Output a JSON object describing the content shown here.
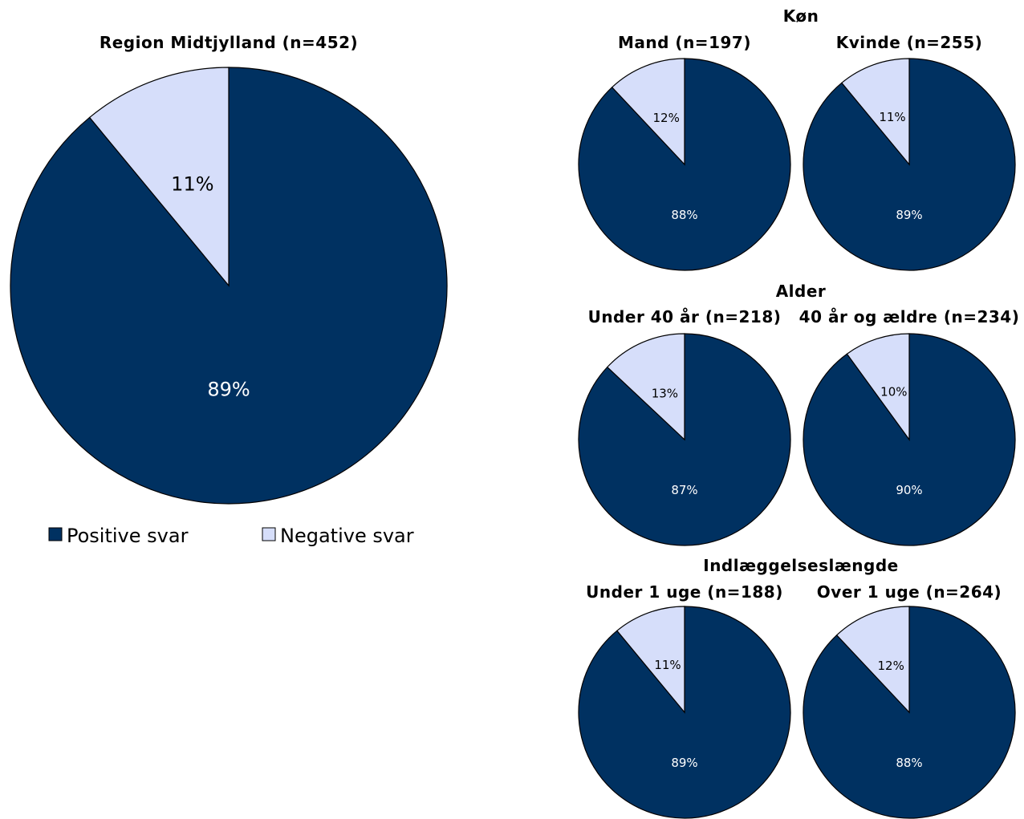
{
  "colors": {
    "positive": "#003161",
    "negative": "#d6defa",
    "positive_label_text": "#ffffff",
    "negative_label_text": "#000000",
    "stroke": "#000000"
  },
  "legend": {
    "positive_label": "Positive svar",
    "negative_label": "Negative svar"
  },
  "group_titles": {
    "gender": "Køn",
    "age": "Alder",
    "stay": "Indlæggelseslængde"
  },
  "chart_data": [
    {
      "type": "pie",
      "id": "region",
      "title": "Region Midtjylland (n=452)",
      "slices": [
        {
          "name": "Positive svar",
          "value": 89,
          "label": "89%"
        },
        {
          "name": "Negative svar",
          "value": 11,
          "label": "11%"
        }
      ]
    },
    {
      "type": "pie",
      "id": "mand",
      "group": "Køn",
      "title": "Mand (n=197)",
      "slices": [
        {
          "name": "Positive svar",
          "value": 88,
          "label": "88%"
        },
        {
          "name": "Negative svar",
          "value": 12,
          "label": "12%"
        }
      ]
    },
    {
      "type": "pie",
      "id": "kvinde",
      "group": "Køn",
      "title": "Kvinde (n=255)",
      "slices": [
        {
          "name": "Positive svar",
          "value": 89,
          "label": "89%"
        },
        {
          "name": "Negative svar",
          "value": 11,
          "label": "11%"
        }
      ]
    },
    {
      "type": "pie",
      "id": "under40",
      "group": "Alder",
      "title": "Under 40 år (n=218)",
      "slices": [
        {
          "name": "Positive svar",
          "value": 87,
          "label": "87%"
        },
        {
          "name": "Negative svar",
          "value": 13,
          "label": "13%"
        }
      ]
    },
    {
      "type": "pie",
      "id": "over40",
      "group": "Alder",
      "title": "40 år og ældre (n=234)",
      "slices": [
        {
          "name": "Positive svar",
          "value": 90,
          "label": "90%"
        },
        {
          "name": "Negative svar",
          "value": 10,
          "label": "10%"
        }
      ]
    },
    {
      "type": "pie",
      "id": "under1uge",
      "group": "Indlæggelseslængde",
      "title": "Under 1 uge (n=188)",
      "slices": [
        {
          "name": "Positive svar",
          "value": 89,
          "label": "89%"
        },
        {
          "name": "Negative svar",
          "value": 11,
          "label": "11%"
        }
      ]
    },
    {
      "type": "pie",
      "id": "over1uge",
      "group": "Indlæggelseslængde",
      "title": "Over 1 uge (n=264)",
      "slices": [
        {
          "name": "Positive svar",
          "value": 88,
          "label": "88%"
        },
        {
          "name": "Negative svar",
          "value": 12,
          "label": "12%"
        }
      ]
    }
  ]
}
